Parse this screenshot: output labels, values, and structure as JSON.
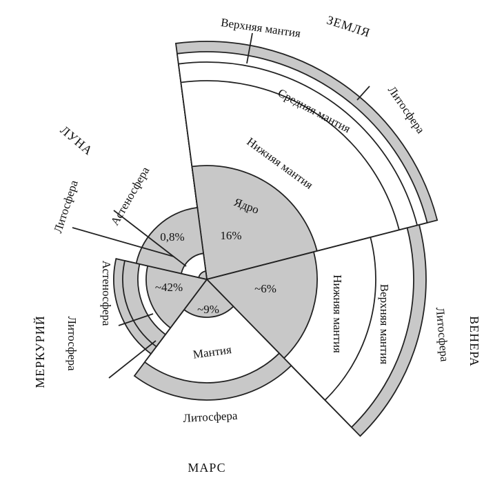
{
  "planets": [
    {
      "name": "ЗЕМЛЯ",
      "core_label": "Ядро",
      "core": "16%",
      "layers": [
        "Нижняя мантия",
        "Средняя мантия",
        "Верхняя мантия",
        "Литосфера"
      ]
    },
    {
      "name": "ВЕНЕРА",
      "core": "~6%",
      "layers": [
        "Нижняя мантия",
        "Верхняя мантия",
        "Литосфера"
      ]
    },
    {
      "name": "МАРС",
      "core": "~9%",
      "layers": [
        "Мантия",
        "Литосфера"
      ]
    },
    {
      "name": "МЕРКУРИЙ",
      "core": "~42%",
      "layers": [
        "Астеносфера",
        "Литосфера"
      ]
    },
    {
      "name": "ЛУНА",
      "core": "0,8%",
      "layers": [
        "Астеносфера",
        "Литосфера"
      ]
    }
  ]
}
